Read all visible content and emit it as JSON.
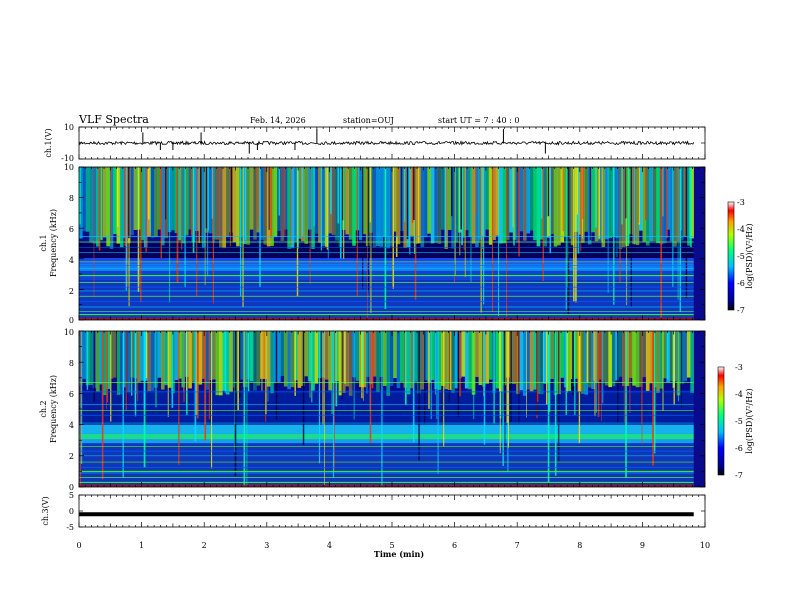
{
  "header": {
    "title": "VLF Spectra",
    "date": "Feb. 14, 2026",
    "station": "station=OUJ",
    "start": "start  UT  =   7 : 40 : 0"
  },
  "chart_data": [
    {
      "type": "line",
      "panel": "ch.1 waveform",
      "ylabel": "ch.1(V)",
      "ylim": [
        -10,
        10
      ],
      "y_ticks": [
        "10",
        "-10"
      ],
      "baseline": 0,
      "spikes": [
        {
          "t": 1.02,
          "v": 3
        },
        {
          "t": 1.3,
          "v": -2
        },
        {
          "t": 1.5,
          "v": -2
        },
        {
          "t": 1.95,
          "v": 3
        },
        {
          "t": 2.72,
          "v": -3
        },
        {
          "t": 2.85,
          "v": -2
        },
        {
          "t": 3.45,
          "v": -2
        },
        {
          "t": 3.8,
          "v": 4
        },
        {
          "t": 6.78,
          "v": 4
        },
        {
          "t": 7.45,
          "v": -3
        }
      ]
    },
    {
      "type": "heatmap",
      "panel": "ch.1 spectrogram",
      "ylabel": "ch.1",
      "ylabel2": "Frequency (kHz)",
      "ylim": [
        0,
        10
      ],
      "y_ticks": [
        "0",
        "2",
        "4",
        "6",
        "8",
        "10"
      ],
      "colorbar_label": "log(PSD)(V²/Hz)",
      "colorbar_ticks": [
        "-3",
        "-4",
        "-5",
        "-6",
        "-7"
      ],
      "colorbar_range": [
        -7,
        -3
      ]
    },
    {
      "type": "heatmap",
      "panel": "ch.2 spectrogram",
      "ylabel": "ch.2",
      "ylabel2": "Frequency (kHz)",
      "ylim": [
        0,
        10
      ],
      "y_ticks": [
        "0",
        "2",
        "4",
        "6",
        "8",
        "10"
      ],
      "colorbar_label": "log(PSD)(V²/Hz)",
      "colorbar_ticks": [
        "-3",
        "-4",
        "-5",
        "-6",
        "-7"
      ],
      "colorbar_range": [
        -7,
        -3
      ]
    },
    {
      "type": "line",
      "panel": "ch.3 waveform",
      "ylabel": "ch.3(V)",
      "ylim": [
        -5,
        5
      ],
      "y_ticks": [
        "5",
        "0",
        "-5"
      ],
      "level": -1
    }
  ],
  "xaxis": {
    "label": "Time  (min)",
    "ticks": [
      "0",
      "1",
      "2",
      "3",
      "4",
      "5",
      "6",
      "7",
      "8",
      "9",
      "10"
    ],
    "data_end_min": 9.82
  }
}
